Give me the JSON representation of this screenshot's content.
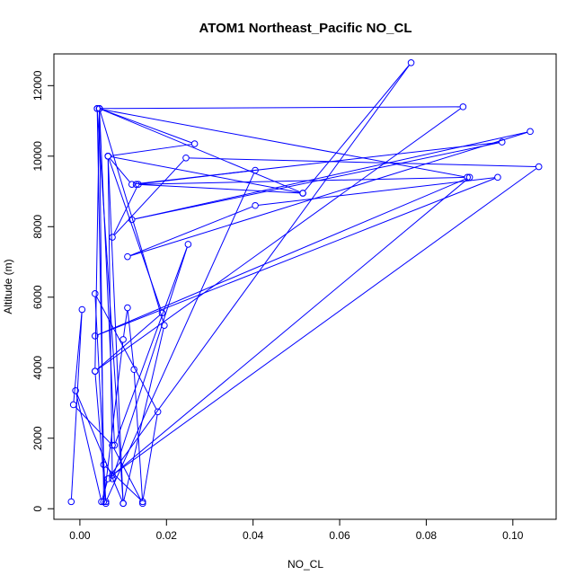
{
  "chart_data": {
    "type": "line",
    "title": "ATOM1 Northeast_Pacific NO_CL",
    "xlabel": "NO_CL",
    "ylabel": "Altitude (m)",
    "xlim": [
      -0.006,
      0.11
    ],
    "ylim": [
      -300,
      12900
    ],
    "x_ticks": [
      0.0,
      0.02,
      0.04,
      0.06,
      0.08,
      0.1
    ],
    "x_tick_labels": [
      "0.00",
      "0.02",
      "0.04",
      "0.06",
      "0.08",
      "0.10"
    ],
    "y_ticks": [
      0,
      2000,
      4000,
      6000,
      8000,
      10000,
      12000
    ],
    "y_tick_labels": [
      "0",
      "2000",
      "4000",
      "6000",
      "8000",
      "10000",
      "12000"
    ],
    "grid": false,
    "series": [
      {
        "color": "#0000ff",
        "marker": "open-circle",
        "x": [
          -0.002,
          0.0005,
          -0.0015,
          0.0075,
          0.0145,
          0.0125,
          0.011,
          0.01,
          0.0055,
          0.0045,
          0.0035,
          0.006,
          0.0035,
          0.018,
          0.0145,
          0.0055,
          0.004,
          0.01,
          0.0065,
          0.012,
          0.0975,
          0.012,
          0.104,
          0.011,
          0.0405,
          0.0965,
          0.0035,
          0.09,
          0.0075,
          0.106,
          0.0245,
          0.0075,
          0.0135,
          0.0895,
          0.004,
          0.0885,
          0.0035,
          0.019,
          0.0065,
          0.0075,
          0.025,
          0.008,
          0.0045,
          0.0195,
          0.01,
          -0.001,
          0.005,
          0.0065,
          0.0765,
          0.0515,
          0.0045,
          0.0265,
          0.0065,
          0.0515,
          0.013,
          0.0405,
          0.006
        ],
        "y": [
          200,
          5650,
          2950,
          1800,
          150,
          3950,
          5700,
          4800,
          200,
          11350,
          3900,
          150,
          6100,
          2750,
          200,
          1250,
          11350,
          150,
          10000,
          9200,
          10400,
          8200,
          10700,
          7150,
          8600,
          9400,
          4900,
          9400,
          950,
          9700,
          9950,
          7700,
          9200,
          9400,
          11350,
          11400,
          3900,
          5550,
          10000,
          850,
          7500,
          1800,
          11350,
          5200,
          150,
          3350,
          200,
          850,
          12650,
          8950,
          11350,
          10350,
          10000,
          8950,
          9200,
          9600,
          200
        ]
      }
    ]
  }
}
